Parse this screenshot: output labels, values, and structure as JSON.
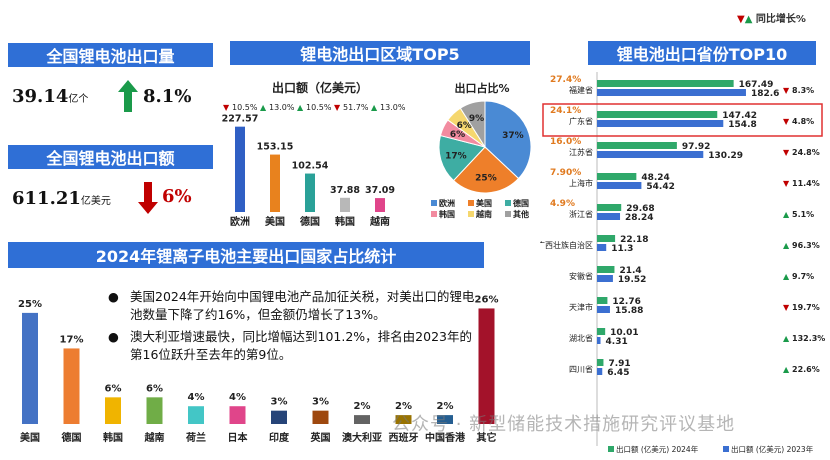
{
  "legend_top": {
    "down": "▼",
    "up": "▲",
    "label": "同比增长%"
  },
  "kpi_block": {
    "title_qty": "全国锂电池出口量",
    "qty_value": "39.14",
    "qty_unit": "亿个",
    "qty_growth": "8.1%",
    "title_amt": "全国锂电池出口额",
    "amt_value": "611.21",
    "amt_unit": "亿美元",
    "amt_growth": "6%"
  },
  "colors": {
    "banner": "#2f6fd6",
    "up": "#1a9a4a",
    "down": "#c00000",
    "orange": "#e07a1f"
  },
  "region": {
    "title": "锂电池出口区域TOP5",
    "bar_title": "出口额（亿美元）",
    "pie_title": "出口占比%"
  },
  "province": {
    "title": "锂电池出口省份TOP10",
    "legend_2024": "出口额 (亿美元) 2024年",
    "legend_2023": "出口额 (亿美元) 2023年"
  },
  "countries": {
    "title": "2024年锂离子电池主要出口国家占比统计",
    "bullet": "●",
    "note1": "美国2024年开始向中国锂电池产品加征关税，对美出口的锂电池数量下降了约16%，但金额仍增长了13%。",
    "note2": "澳大利亚增速最快，同比增幅达到101.2%，排名由2023年的第16位跃升至去年的第9位。"
  },
  "watermark": "公众号 · 新型储能技术措施研究评议基地",
  "chart_data": [
    {
      "type": "bar",
      "title": "出口额（亿美元）",
      "categories": [
        "欧洲",
        "美国",
        "德国",
        "韩国",
        "越南"
      ],
      "values": [
        227.57,
        153.15,
        102.54,
        37.88,
        37.09
      ],
      "value_labels": [
        "227.57",
        "153.15",
        "102.54",
        "37.88",
        "37.09"
      ],
      "growth": [
        {
          "dir": "down",
          "text": "10.5%"
        },
        {
          "dir": "up",
          "text": "13.0%"
        },
        {
          "dir": "up",
          "text": "10.5%"
        },
        {
          "dir": "down",
          "text": "51.7%"
        },
        {
          "dir": "up",
          "text": "13.0%"
        }
      ],
      "colors": [
        "#2f5fc4",
        "#e8821e",
        "#2aa198",
        "#b8b8b8",
        "#e0458a"
      ],
      "ylim": [
        0,
        240
      ]
    },
    {
      "type": "pie",
      "title": "出口占比%",
      "slices": [
        {
          "name": "欧洲",
          "value": 37,
          "color": "#4a8ad4"
        },
        {
          "name": "美国",
          "value": 25,
          "color": "#ee7f2a"
        },
        {
          "name": "德国",
          "value": 17,
          "color": "#3eada3"
        },
        {
          "name": "韩国",
          "value": 6,
          "color": "#f28ba0"
        },
        {
          "name": "越南",
          "value": 6,
          "color": "#f5d76e"
        },
        {
          "name": "其他",
          "value": 9,
          "color": "#a0a0a0"
        }
      ]
    },
    {
      "type": "bar",
      "orientation": "horizontal",
      "title": "锂电池出口省份TOP10",
      "categories": [
        "福建省",
        "广东省",
        "江苏省",
        "上海市",
        "浙江省",
        "广西壮族自治区",
        "安徽省",
        "天津市",
        "湖北省",
        "四川省"
      ],
      "series": [
        {
          "name": "出口额 (亿美元) 2024年",
          "values": [
            167.49,
            147.42,
            97.92,
            48.24,
            29.68,
            22.18,
            21.4,
            12.76,
            10.01,
            7.91
          ],
          "labels": [
            "167.49",
            "147.42",
            "97.92",
            "48.24",
            "29.68",
            "22.18",
            "21.4",
            "12.76",
            "10.01",
            "7.91"
          ],
          "color": "#2fa86a"
        },
        {
          "name": "出口额 (亿美元) 2023年",
          "values": [
            182.6,
            154.8,
            130.29,
            54.42,
            28.24,
            11.3,
            19.52,
            15.88,
            4.31,
            6.45
          ],
          "labels": [
            "182.6",
            "154.8",
            "130.29",
            "54.42",
            "28.24",
            "11.3",
            "19.52",
            "15.88",
            "4.31",
            "6.45"
          ],
          "color": "#3b6fd1"
        }
      ],
      "share": [
        "27.4%",
        "24.1%",
        "16.0%",
        "7.90%",
        "4.9%",
        "",
        "",
        "",
        "",
        ""
      ],
      "growth": [
        {
          "dir": "down",
          "text": "8.3%"
        },
        {
          "dir": "down",
          "text": "4.8%"
        },
        {
          "dir": "down",
          "text": "24.8%"
        },
        {
          "dir": "down",
          "text": "11.4%"
        },
        {
          "dir": "up",
          "text": "5.1%"
        },
        {
          "dir": "up",
          "text": "96.3%"
        },
        {
          "dir": "up",
          "text": "9.7%"
        },
        {
          "dir": "down",
          "text": "19.7%"
        },
        {
          "dir": "up",
          "text": "132.3%"
        },
        {
          "dir": "up",
          "text": "22.6%"
        }
      ],
      "highlight": "广东省",
      "xlim": [
        0,
        190
      ]
    },
    {
      "type": "bar",
      "title": "2024年锂离子电池主要出口国家占比统计",
      "categories": [
        "美国",
        "德国",
        "韩国",
        "越南",
        "荷兰",
        "日本",
        "印度",
        "英国",
        "澳大利亚",
        "西班牙",
        "中国香港",
        "其它"
      ],
      "values": [
        25,
        17,
        6,
        6,
        4,
        4,
        3,
        3,
        2,
        2,
        2,
        26
      ],
      "value_labels": [
        "25%",
        "17%",
        "6%",
        "6%",
        "4%",
        "4%",
        "3%",
        "3%",
        "2%",
        "2%",
        "2%",
        "26%"
      ],
      "colors": [
        "#4472c4",
        "#ed7d31",
        "#f0b400",
        "#70ad47",
        "#43c6c6",
        "#e0458a",
        "#264478",
        "#9e480e",
        "#636363",
        "#997300",
        "#255e91",
        "#a3122a"
      ],
      "ylim": [
        0,
        27
      ]
    }
  ]
}
